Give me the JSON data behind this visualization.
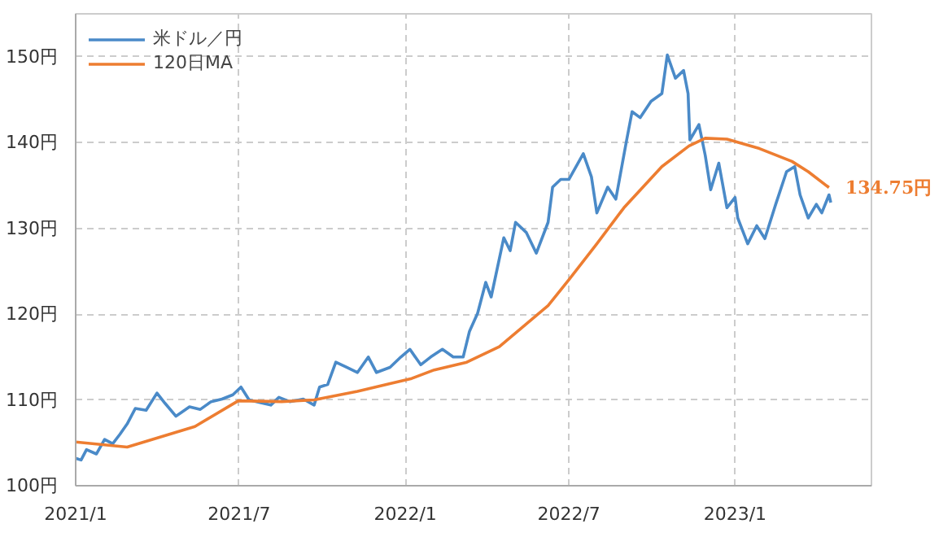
{
  "chart_data": {
    "type": "line",
    "legend": "top left",
    "grid": true,
    "line_style": "solid",
    "marker": "none",
    "xlim": [
      "2021-01-01",
      "2023-06-01"
    ],
    "ylim": [
      100,
      155
    ],
    "xticks": [
      {
        "value": "2021-01-01",
        "label": "2021/1"
      },
      {
        "value": "2021-07-01",
        "label": "2021/7"
      },
      {
        "value": "2022-01-01",
        "label": "2022/1"
      },
      {
        "value": "2022-07-01",
        "label": "2022/7"
      },
      {
        "value": "2023-01-01",
        "label": "2023/1"
      }
    ],
    "yticks": [
      {
        "value": 100,
        "label": "100円"
      },
      {
        "value": 110,
        "label": "110円"
      },
      {
        "value": 120,
        "label": "120円"
      },
      {
        "value": 130,
        "label": "130円"
      },
      {
        "value": 140,
        "label": "140円"
      },
      {
        "value": 150,
        "label": "150円"
      }
    ],
    "series": [
      {
        "name": "米ドル／円",
        "color": "#4a8ac8",
        "x": [
          "2021-01-01",
          "2021-01-07",
          "2021-01-13",
          "2021-01-24",
          "2021-02-02",
          "2021-02-11",
          "2021-02-19",
          "2021-02-27",
          "2021-03-08",
          "2021-03-20",
          "2021-04-01",
          "2021-04-10",
          "2021-04-22",
          "2021-05-07",
          "2021-05-19",
          "2021-05-31",
          "2021-06-12",
          "2021-06-24",
          "2021-07-03",
          "2021-07-12",
          "2021-07-24",
          "2021-08-05",
          "2021-08-14",
          "2021-08-26",
          "2021-09-10",
          "2021-09-22",
          "2021-09-28",
          "2021-10-07",
          "2021-10-16",
          "2021-10-28",
          "2021-11-09",
          "2021-11-21",
          "2021-11-30",
          "2021-12-15",
          "2021-12-27",
          "2022-01-06",
          "2022-01-18",
          "2022-01-29",
          "2022-02-11",
          "2022-02-23",
          "2022-03-06",
          "2022-03-13",
          "2022-03-22",
          "2022-03-31",
          "2022-04-06",
          "2022-04-20",
          "2022-04-27",
          "2022-05-03",
          "2022-05-15",
          "2022-05-26",
          "2022-06-08",
          "2022-06-13",
          "2022-06-22",
          "2022-07-01",
          "2022-07-17",
          "2022-07-26",
          "2022-08-01",
          "2022-08-13",
          "2022-08-22",
          "2022-09-03",
          "2022-09-09",
          "2022-09-18",
          "2022-09-30",
          "2022-10-12",
          "2022-10-18",
          "2022-10-27",
          "2022-11-05",
          "2022-11-10",
          "2022-11-12",
          "2022-11-22",
          "2022-11-29",
          "2022-12-05",
          "2022-12-14",
          "2022-12-23",
          "2023-01-01",
          "2023-01-04",
          "2023-01-15",
          "2023-01-25",
          "2023-02-03",
          "2023-02-15",
          "2023-02-27",
          "2023-03-08",
          "2023-03-14",
          "2023-03-23",
          "2023-04-01",
          "2023-04-07",
          "2023-04-15",
          "2023-04-17"
        ],
        "values": [
          103.2,
          103,
          104.2,
          103.7,
          105.4,
          104.9,
          106,
          107.2,
          109,
          108.8,
          110.8,
          109.6,
          108.1,
          109.2,
          108.9,
          109.8,
          110.1,
          110.6,
          111.5,
          110,
          109.7,
          109.4,
          110.3,
          109.8,
          110.1,
          109.4,
          111.5,
          111.8,
          114.4,
          113.8,
          113.2,
          115,
          113.2,
          113.8,
          115,
          115.9,
          114.1,
          115,
          115.9,
          115,
          115,
          118,
          120.1,
          123.7,
          122,
          128.9,
          127.4,
          130.7,
          129.5,
          127.1,
          130.7,
          134.8,
          135.7,
          135.7,
          138.7,
          136,
          131.8,
          134.8,
          133.4,
          140.3,
          143.6,
          142.9,
          144.8,
          145.7,
          150.2,
          147.5,
          148.4,
          145.7,
          140.3,
          142.1,
          138.5,
          134.5,
          137.6,
          132.4,
          133.6,
          131.2,
          128.2,
          130.3,
          128.8,
          132.8,
          136.6,
          137.2,
          133.9,
          131.2,
          132.8,
          131.8,
          133.9,
          133
        ]
      },
      {
        "name": "120日MA",
        "color": "#ed7d31",
        "x": [
          "2021-01-01",
          "2021-02-27",
          "2021-05-13",
          "2021-06-30",
          "2021-08-17",
          "2021-09-22",
          "2021-11-09",
          "2021-12-15",
          "2022-01-08",
          "2022-02-02",
          "2022-03-10",
          "2022-04-15",
          "2022-06-08",
          "2022-07-01",
          "2022-08-01",
          "2022-08-31",
          "2022-10-12",
          "2022-11-11",
          "2022-11-29",
          "2022-12-23",
          "2023-01-28",
          "2023-03-05",
          "2023-03-23",
          "2023-04-15"
        ],
        "values": [
          105.1,
          104.5,
          106.9,
          109.9,
          109.8,
          110,
          111,
          111.9,
          112.5,
          113.5,
          114.4,
          116.2,
          121,
          124,
          128.2,
          132.4,
          137.2,
          139.6,
          140.5,
          140.4,
          139.3,
          137.8,
          136.6,
          134.75
        ]
      }
    ],
    "annotations": [
      {
        "text": "134.75円",
        "x": "2023-04-15",
        "y": 134.75
      }
    ]
  }
}
